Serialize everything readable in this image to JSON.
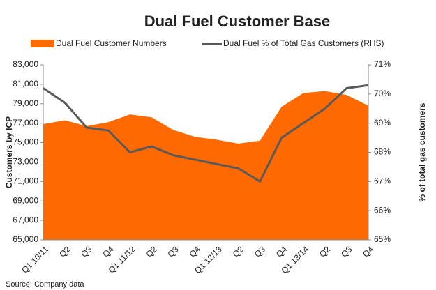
{
  "chart_data": {
    "type": "area_line",
    "title": "Dual Fuel Customer Base",
    "categories": [
      "Q1 10/11",
      "Q2",
      "Q3",
      "Q4",
      "Q1 11/12",
      "Q2",
      "Q3",
      "Q4",
      "Q1 12/13",
      "Q2",
      "Q3",
      "Q4",
      "Q1 13/14",
      "Q2",
      "Q3",
      "Q4"
    ],
    "series": [
      {
        "name": "Dual Fuel Customer Numbers",
        "color": "#ff6a00",
        "values": [
          76900,
          77300,
          76700,
          77100,
          77900,
          77600,
          76300,
          75600,
          75300,
          74900,
          75200,
          78700,
          80100,
          80300,
          79900,
          78800
        ]
      },
      {
        "name": "Dual Fuel % of Total Gas Customers (RHS)",
        "color": "#595959",
        "axis": "y2",
        "values": [
          70.2,
          69.7,
          68.85,
          68.75,
          68.0,
          68.2,
          67.9,
          67.75,
          67.6,
          67.45,
          67.0,
          68.5,
          69.0,
          69.5,
          70.2,
          70.3
        ]
      }
    ],
    "ylabel": "Customers by ICP",
    "y2label": "% of total gas customers",
    "ylim": [
      65000,
      83000
    ],
    "yticks": [
      {
        "value": 65000,
        "label": "65,000"
      },
      {
        "value": 67000,
        "label": "67,000"
      },
      {
        "value": 69000,
        "label": "69,000"
      },
      {
        "value": 71000,
        "label": "71,000"
      },
      {
        "value": 73000,
        "label": "73,000"
      },
      {
        "value": 75000,
        "label": "75,000"
      },
      {
        "value": 77000,
        "label": "77,000"
      },
      {
        "value": 79000,
        "label": "79,000"
      },
      {
        "value": 81000,
        "label": "81,000"
      },
      {
        "value": 83000,
        "label": "83,000"
      }
    ],
    "y2lim": [
      65,
      71
    ],
    "y2ticks": [
      {
        "value": 65,
        "label": "65%"
      },
      {
        "value": 66,
        "label": "66%"
      },
      {
        "value": 67,
        "label": "67%"
      },
      {
        "value": 68,
        "label": "68%"
      },
      {
        "value": 69,
        "label": "69%"
      },
      {
        "value": 70,
        "label": "70%"
      },
      {
        "value": 71,
        "label": "71%"
      }
    ],
    "source": "Source: Company data"
  }
}
